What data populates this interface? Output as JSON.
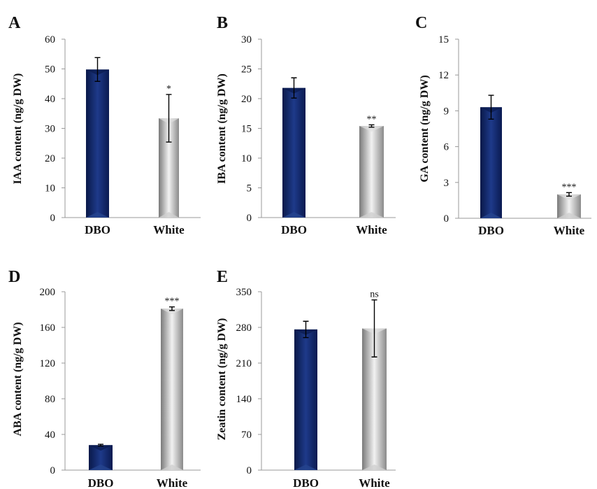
{
  "chart_data": [
    {
      "type": "bar",
      "panel": "A",
      "categories": [
        "DBO",
        "White"
      ],
      "values": [
        49.8,
        33.4
      ],
      "errors": [
        4.0,
        8.0
      ],
      "significance": [
        "",
        "*"
      ],
      "ylabel": "IAA content (ng/g DW)",
      "ylim": [
        0,
        60
      ],
      "yticks": [
        "0",
        "10",
        "20",
        "30",
        "40",
        "50",
        "60"
      ],
      "grid": false,
      "colors": [
        "#0d2260",
        "#bdbdbd"
      ]
    },
    {
      "type": "bar",
      "panel": "B",
      "categories": [
        "DBO",
        "White"
      ],
      "values": [
        21.8,
        15.4
      ],
      "errors": [
        1.7,
        0.2
      ],
      "significance": [
        "",
        "**"
      ],
      "ylabel": "IBA content (ng/g DW)",
      "ylim": [
        0,
        30
      ],
      "yticks": [
        "0",
        "5",
        "10",
        "15",
        "20",
        "25",
        "30"
      ],
      "grid": false,
      "colors": [
        "#0d2260",
        "#bdbdbd"
      ]
    },
    {
      "type": "bar",
      "panel": "C",
      "categories": [
        "DBO",
        "White"
      ],
      "values": [
        9.3,
        2.0
      ],
      "errors": [
        1.0,
        0.15
      ],
      "significance": [
        "",
        "***"
      ],
      "ylabel": "GA content (ng/g DW)",
      "ylim": [
        0,
        15
      ],
      "yticks": [
        "0",
        "3",
        "6",
        "9",
        "12",
        "15"
      ],
      "grid": false,
      "colors": [
        "#0d2260",
        "#bdbdbd"
      ]
    },
    {
      "type": "bar",
      "panel": "D",
      "categories": [
        "DBO",
        "White"
      ],
      "values": [
        28,
        181
      ],
      "errors": [
        1.0,
        2.0
      ],
      "significance": [
        "",
        "***"
      ],
      "ylabel": "ABA content (ng/g DW)",
      "ylim": [
        0,
        200
      ],
      "yticks": [
        "0",
        "40",
        "80",
        "120",
        "160",
        "200"
      ],
      "grid": false,
      "colors": [
        "#0d2260",
        "#bdbdbd"
      ]
    },
    {
      "type": "bar",
      "panel": "E",
      "categories": [
        "DBO",
        "White"
      ],
      "values": [
        276,
        278
      ],
      "errors": [
        16,
        56
      ],
      "significance": [
        "",
        "ns"
      ],
      "ylabel": "Zeatin content (ng/g DW)",
      "ylim": [
        0,
        350
      ],
      "yticks": [
        "0",
        "70",
        "140",
        "210",
        "280",
        "350"
      ],
      "grid": false,
      "colors": [
        "#0d2260",
        "#bdbdbd"
      ]
    }
  ]
}
